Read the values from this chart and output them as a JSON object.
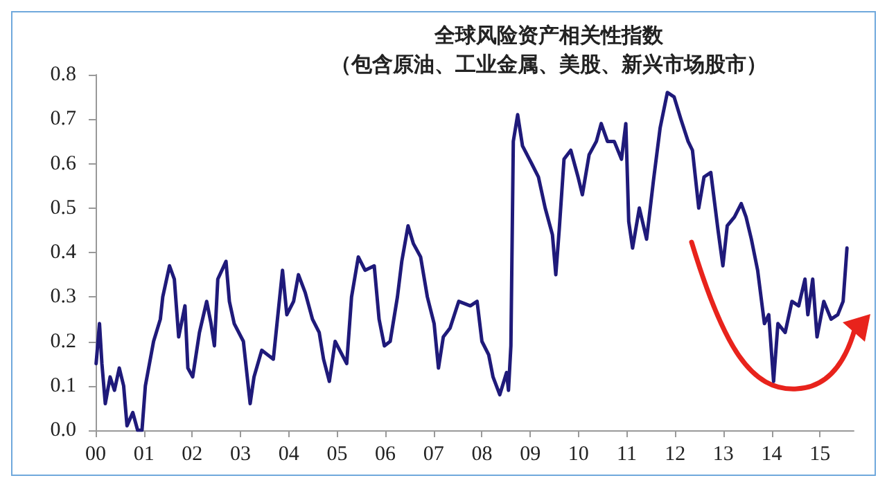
{
  "chart_data": {
    "type": "line",
    "title": "全球风险资产相关性指数",
    "subtitle": "（包含原油、工业金属、美股、新兴市场股市）",
    "x": [
      2000.01,
      2000.08,
      2000.13,
      2000.2,
      2000.3,
      2000.39,
      2000.49,
      2000.58,
      2000.65,
      2000.77,
      2000.87,
      2000.96,
      2001.03,
      2001.2,
      2001.34,
      2001.39,
      2001.53,
      2001.63,
      2001.72,
      2001.85,
      2001.91,
      2002.01,
      2002.15,
      2002.3,
      2002.39,
      2002.46,
      2002.53,
      2002.7,
      2002.77,
      2002.87,
      2003.06,
      2003.2,
      2003.28,
      2003.44,
      2003.68,
      2003.87,
      2003.96,
      2004.1,
      2004.2,
      2004.34,
      2004.49,
      2004.63,
      2004.72,
      2004.84,
      2004.96,
      2005.2,
      2005.3,
      2005.44,
      2005.58,
      2005.77,
      2005.87,
      2005.98,
      2006.1,
      2006.25,
      2006.34,
      2006.47,
      2006.58,
      2006.73,
      2006.87,
      2007.01,
      2007.1,
      2007.2,
      2007.34,
      2007.49,
      2007.52,
      2007.76,
      2007.9,
      2008.0,
      2008.14,
      2008.23,
      2008.37,
      2008.51,
      2008.55,
      2008.6,
      2008.65,
      2008.74,
      2008.84,
      2009.03,
      2009.17,
      2009.31,
      2009.46,
      2009.53,
      2009.6,
      2009.7,
      2009.84,
      2009.99,
      2010.08,
      2010.22,
      2010.37,
      2010.47,
      2010.6,
      2010.74,
      2010.89,
      2010.98,
      2011.04,
      2011.12,
      2011.26,
      2011.41,
      2011.55,
      2011.69,
      2011.84,
      2011.98,
      2012.12,
      2012.27,
      2012.36,
      2012.49,
      2012.6,
      2012.74,
      2012.89,
      2012.99,
      2013.08,
      2013.23,
      2013.37,
      2013.47,
      2013.58,
      2013.71,
      2013.85,
      2013.94,
      2014.04,
      2014.13,
      2014.28,
      2014.42,
      2014.56,
      2014.69,
      2014.75,
      2014.85,
      2014.94,
      2015.08,
      2015.23,
      2015.37,
      2015.48,
      2015.56
    ],
    "series": [
      {
        "color": "#1f1a7a",
        "values": [
          0.15,
          0.24,
          0.15,
          0.06,
          0.12,
          0.09,
          0.14,
          0.1,
          0.01,
          0.04,
          0.0,
          0.0,
          0.1,
          0.2,
          0.25,
          0.3,
          0.37,
          0.34,
          0.21,
          0.28,
          0.14,
          0.12,
          0.22,
          0.29,
          0.24,
          0.19,
          0.34,
          0.38,
          0.29,
          0.24,
          0.2,
          0.06,
          0.12,
          0.18,
          0.16,
          0.36,
          0.26,
          0.29,
          0.35,
          0.31,
          0.25,
          0.22,
          0.16,
          0.11,
          0.2,
          0.15,
          0.3,
          0.39,
          0.36,
          0.37,
          0.25,
          0.19,
          0.2,
          0.3,
          0.38,
          0.46,
          0.42,
          0.39,
          0.3,
          0.24,
          0.14,
          0.21,
          0.23,
          0.28,
          0.29,
          0.28,
          0.29,
          0.2,
          0.17,
          0.12,
          0.08,
          0.13,
          0.09,
          0.19,
          0.65,
          0.71,
          0.64,
          0.6,
          0.57,
          0.5,
          0.44,
          0.35,
          0.45,
          0.61,
          0.63,
          0.57,
          0.53,
          0.62,
          0.65,
          0.69,
          0.65,
          0.65,
          0.61,
          0.69,
          0.47,
          0.41,
          0.5,
          0.43,
          0.56,
          0.68,
          0.76,
          0.75,
          0.7,
          0.65,
          0.63,
          0.5,
          0.57,
          0.58,
          0.45,
          0.37,
          0.46,
          0.48,
          0.51,
          0.48,
          0.43,
          0.36,
          0.24,
          0.26,
          0.11,
          0.24,
          0.22,
          0.29,
          0.28,
          0.34,
          0.26,
          0.34,
          0.21,
          0.29,
          0.25,
          0.26,
          0.29,
          0.41
        ]
      }
    ],
    "xlim": [
      2000,
      2015.7
    ],
    "xticks": [
      {
        "value": 2000,
        "label": "00"
      },
      {
        "value": 2001,
        "label": "01"
      },
      {
        "value": 2002,
        "label": "02"
      },
      {
        "value": 2003,
        "label": "03"
      },
      {
        "value": 2004,
        "label": "04"
      },
      {
        "value": 2005,
        "label": "05"
      },
      {
        "value": 2006,
        "label": "06"
      },
      {
        "value": 2007,
        "label": "07"
      },
      {
        "value": 2008,
        "label": "08"
      },
      {
        "value": 2009,
        "label": "09"
      },
      {
        "value": 2010,
        "label": "10"
      },
      {
        "value": 2011,
        "label": "11"
      },
      {
        "value": 2012,
        "label": "12"
      },
      {
        "value": 2013,
        "label": "13"
      },
      {
        "value": 2014,
        "label": "14"
      },
      {
        "value": 2015,
        "label": "15"
      }
    ],
    "ylim": [
      0,
      0.8
    ],
    "yticks": [
      {
        "value": 0,
        "label": "0.0"
      },
      {
        "value": 0.1,
        "label": "0.1"
      },
      {
        "value": 0.2,
        "label": "0.2"
      },
      {
        "value": 0.3,
        "label": "0.3"
      },
      {
        "value": 0.4,
        "label": "0.4"
      },
      {
        "value": 0.5,
        "label": "0.5"
      },
      {
        "value": 0.6,
        "label": "0.6"
      },
      {
        "value": 0.7,
        "label": "0.7"
      },
      {
        "value": 0.8,
        "label": "0.8"
      }
    ],
    "grid": false,
    "marker": "none",
    "line_style": "solid"
  }
}
